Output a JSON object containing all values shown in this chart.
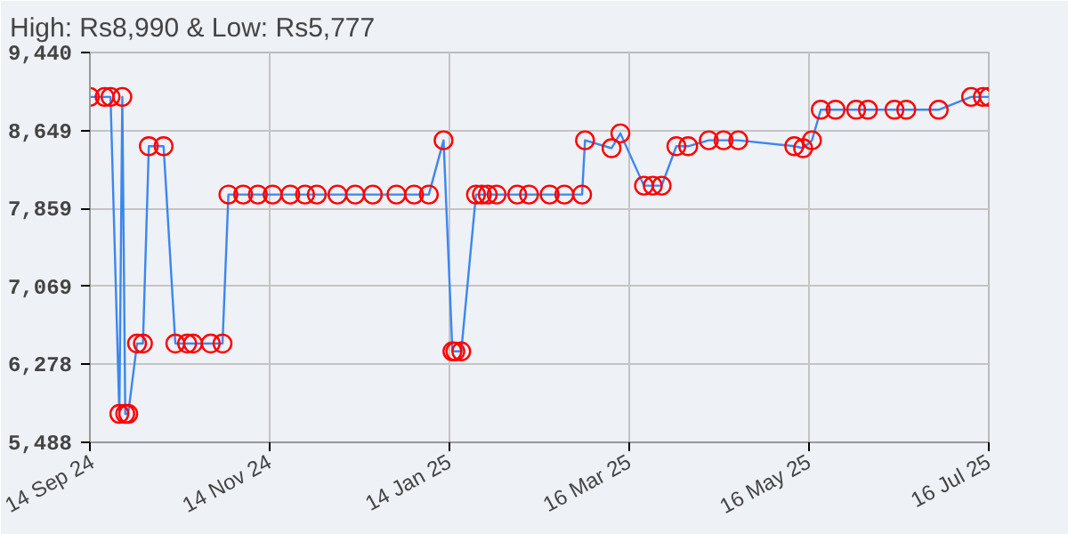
{
  "chart_data": {
    "type": "line",
    "title": "High: Rs8,990 & Low: Rs5,777",
    "x": [
      "2024-09-14",
      "2024-09-19",
      "2024-09-21",
      "2024-09-24",
      "2024-09-25",
      "2024-09-26",
      "2024-09-27",
      "2024-09-30",
      "2024-10-02",
      "2024-10-04",
      "2024-10-09",
      "2024-10-13",
      "2024-10-17",
      "2024-10-19",
      "2024-10-25",
      "2024-10-29",
      "2024-10-31",
      "2024-11-05",
      "2024-11-10",
      "2024-11-15",
      "2024-11-21",
      "2024-11-26",
      "2024-11-30",
      "2024-12-07",
      "2024-12-13",
      "2024-12-19",
      "2024-12-27",
      "2025-01-02",
      "2025-01-07",
      "2025-01-12",
      "2025-01-15",
      "2025-01-16",
      "2025-01-18",
      "2025-01-23",
      "2025-01-25",
      "2025-01-27",
      "2025-01-30",
      "2025-02-06",
      "2025-02-10",
      "2025-02-17",
      "2025-02-22",
      "2025-02-28",
      "2025-03-01",
      "2025-03-10",
      "2025-03-13",
      "2025-03-21",
      "2025-03-24",
      "2025-03-27",
      "2025-04-01",
      "2025-04-05",
      "2025-04-12",
      "2025-04-17",
      "2025-04-22",
      "2025-05-11",
      "2025-05-14",
      "2025-05-17",
      "2025-05-20",
      "2025-05-25",
      "2025-06-01",
      "2025-06-05",
      "2025-06-14",
      "2025-06-18",
      "2025-06-29",
      "2025-07-10",
      "2025-07-14",
      "2025-07-16"
    ],
    "series": [
      {
        "color": "#3c86f0",
        "values": [
          8990,
          8990,
          8990,
          5777,
          8990,
          5777,
          5777,
          6490,
          6490,
          8490,
          8490,
          6490,
          6490,
          6490,
          6490,
          6490,
          8000,
          8000,
          8000,
          8000,
          8000,
          8000,
          8000,
          8000,
          8000,
          8000,
          8000,
          8000,
          8000,
          8550,
          6410,
          6410,
          6410,
          8000,
          8000,
          8000,
          8000,
          8000,
          8000,
          8000,
          8000,
          8000,
          8550,
          8470,
          8620,
          8090,
          8090,
          8090,
          8490,
          8490,
          8550,
          8550,
          8550,
          8490,
          8470,
          8550,
          8860,
          8860,
          8860,
          8860,
          8860,
          8860,
          8860,
          8990,
          8990,
          8990
        ]
      }
    ],
    "xlim": [
      "2024-09-14",
      "2025-07-16"
    ],
    "xticks": [
      {
        "value": "2024-09-14",
        "label": "14 Sep 24"
      },
      {
        "value": "2024-11-14",
        "label": "14 Nov 24"
      },
      {
        "value": "2025-01-14",
        "label": "14 Jan 25"
      },
      {
        "value": "2025-03-16",
        "label": "16 Mar 25"
      },
      {
        "value": "2025-05-16",
        "label": "16 May 25"
      },
      {
        "value": "2025-07-16",
        "label": "16 Jul 25"
      }
    ],
    "ylim": [
      5488,
      9440
    ],
    "yticks": [
      {
        "value": 5488,
        "label": "5,488"
      },
      {
        "value": 6278,
        "label": "6,278"
      },
      {
        "value": 7069,
        "label": "7,069"
      },
      {
        "value": 7859,
        "label": "7,859"
      },
      {
        "value": 8649,
        "label": "8,649"
      },
      {
        "value": 9440,
        "label": "9,440"
      }
    ],
    "grid": true,
    "marker": "circle",
    "line_style": "solid"
  }
}
